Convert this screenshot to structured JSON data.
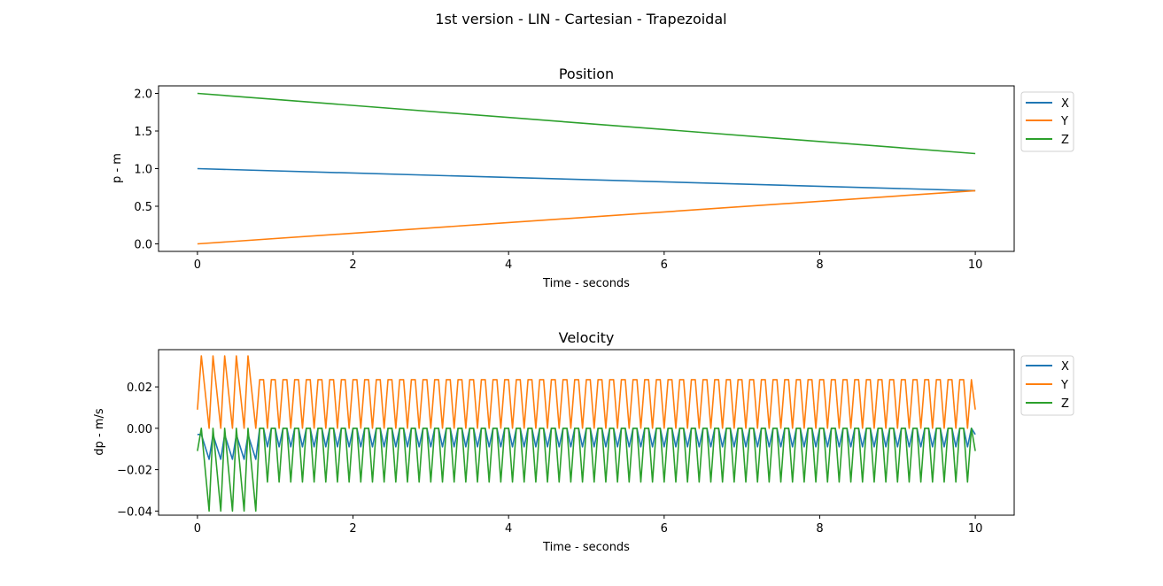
{
  "suptitle": "1st version - LIN - Cartesian - Trapezoidal",
  "colors": {
    "X": "#1f77b4",
    "Y": "#ff7f0e",
    "Z": "#2ca02c"
  },
  "chart_data": [
    {
      "type": "line",
      "title": "Position",
      "xlabel": "Time - seconds",
      "ylabel": "p - m",
      "xlim": [
        -0.5,
        10.5
      ],
      "ylim": [
        -0.1,
        2.1
      ],
      "xticks": [
        "0",
        "2",
        "4",
        "6",
        "8",
        "10"
      ],
      "yticks": [
        "0.0",
        "0.5",
        "1.0",
        "1.5",
        "2.0"
      ],
      "legend": "outside-upper-right",
      "grid": false,
      "series": [
        {
          "name": "X",
          "x": [
            0,
            10
          ],
          "y": [
            1.0,
            0.707
          ]
        },
        {
          "name": "Y",
          "x": [
            0,
            10
          ],
          "y": [
            0.0,
            0.707
          ]
        },
        {
          "name": "Z",
          "x": [
            0,
            10
          ],
          "y": [
            2.0,
            1.2
          ]
        }
      ]
    },
    {
      "type": "line",
      "title": "Velocity",
      "xlabel": "Time - seconds",
      "ylabel": "dp - m/s",
      "xlim": [
        -0.5,
        10.5
      ],
      "ylim": [
        -0.042,
        0.038
      ],
      "xticks": [
        "0",
        "2",
        "4",
        "6",
        "8",
        "10"
      ],
      "yticks": [
        "−0.04",
        "−0.02",
        "0.00",
        "0.02"
      ],
      "legend": "outside-upper-right",
      "grid": false,
      "series": [
        {
          "name": "X",
          "x_range": [
            0,
            10
          ],
          "baseline": -0.003,
          "levels": [
            -0.015,
            -0.003
          ],
          "steady_levels": [
            -0.009,
            0.0
          ]
        },
        {
          "name": "Y",
          "x_range": [
            0,
            10
          ],
          "baseline": 0.009,
          "levels": [
            0.0,
            0.035
          ],
          "steady_levels": [
            0.0,
            0.0235
          ]
        },
        {
          "name": "Z",
          "x_range": [
            0,
            10
          ],
          "baseline": -0.011,
          "levels": [
            -0.04,
            0.0
          ],
          "steady_levels": [
            -0.026,
            0.0
          ]
        }
      ]
    }
  ]
}
